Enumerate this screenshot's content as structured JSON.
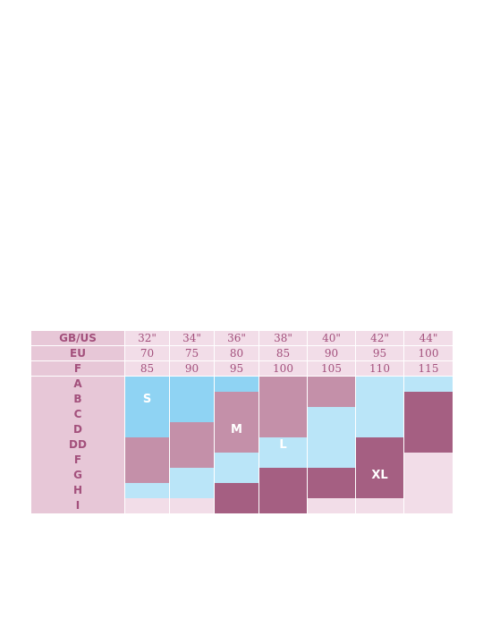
{
  "table": {
    "header_rows": [
      {
        "label": "GB/US",
        "values": [
          "32\"",
          "34\"",
          "36\"",
          "38\"",
          "40\"",
          "42\"",
          "44\""
        ]
      },
      {
        "label": "EU",
        "values": [
          70,
          75,
          80,
          85,
          90,
          95,
          100
        ]
      },
      {
        "label": "F",
        "values": [
          85,
          90,
          95,
          100,
          105,
          110,
          115
        ]
      }
    ],
    "rows": [
      {
        "cup": "A",
        "cells": [
          {
            "color": "#8fd3f3"
          },
          {
            "color": "#8fd3f3"
          },
          {
            "color": "#8fd3f3"
          },
          {
            "color": "#c490a9"
          },
          {
            "color": "#c490a9"
          },
          {
            "color": "#bae5f8"
          },
          {
            "color": "#bae5f8"
          }
        ]
      },
      {
        "cup": "B",
        "cells": [
          {
            "color": "#8fd3f3",
            "label": "S"
          },
          {
            "color": "#8fd3f3"
          },
          {
            "color": "#c490a9"
          },
          {
            "color": "#c490a9"
          },
          {
            "color": "#c490a9"
          },
          {
            "color": "#bae5f8"
          },
          {
            "color": "#a55f82"
          }
        ]
      },
      {
        "cup": "C",
        "cells": [
          {
            "color": "#8fd3f3"
          },
          {
            "color": "#8fd3f3"
          },
          {
            "color": "#c490a9"
          },
          {
            "color": "#c490a9"
          },
          {
            "color": "#bae5f8"
          },
          {
            "color": "#bae5f8"
          },
          {
            "color": "#a55f82"
          }
        ]
      },
      {
        "cup": "D",
        "cells": [
          {
            "color": "#8fd3f3"
          },
          {
            "color": "#c490a9"
          },
          {
            "color": "#c490a9",
            "label": "M"
          },
          {
            "color": "#c490a9"
          },
          {
            "color": "#bae5f8"
          },
          {
            "color": "#bae5f8"
          },
          {
            "color": "#a55f82"
          }
        ]
      },
      {
        "cup": "DD",
        "cells": [
          {
            "color": "#c490a9"
          },
          {
            "color": "#c490a9"
          },
          {
            "color": "#c490a9"
          },
          {
            "color": "#bae5f8",
            "label": "L"
          },
          {
            "color": "#bae5f8"
          },
          {
            "color": "#a55f82"
          },
          {
            "color": "#a55f82"
          }
        ]
      },
      {
        "cup": "F",
        "cells": [
          {
            "color": "#c490a9"
          },
          {
            "color": "#c490a9"
          },
          {
            "color": "#bae5f8"
          },
          {
            "color": "#bae5f8"
          },
          {
            "color": "#bae5f8"
          },
          {
            "color": "#a55f82"
          },
          {
            "color": "#f2dde8"
          }
        ]
      },
      {
        "cup": "G",
        "cells": [
          {
            "color": "#c490a9"
          },
          {
            "color": "#bae5f8"
          },
          {
            "color": "#bae5f8"
          },
          {
            "color": "#a55f82"
          },
          {
            "color": "#a55f82"
          },
          {
            "color": "#a55f82",
            "label": "XL"
          },
          {
            "color": "#f2dde8"
          }
        ]
      },
      {
        "cup": "H",
        "cells": [
          {
            "color": "#bae5f8"
          },
          {
            "color": "#bae5f8"
          },
          {
            "color": "#a55f82"
          },
          {
            "color": "#a55f82"
          },
          {
            "color": "#a55f82"
          },
          {
            "color": "#a55f82"
          },
          {
            "color": "#f2dde8"
          }
        ]
      },
      {
        "cup": "I",
        "cells": [
          {
            "color": "#f2dde8"
          },
          {
            "color": "#f2dde8"
          },
          {
            "color": "#a55f82"
          },
          {
            "color": "#a55f82"
          },
          {
            "color": "#f2dde8"
          },
          {
            "color": "#f2dde8"
          },
          {
            "color": "#f2dde8"
          }
        ]
      }
    ]
  }
}
